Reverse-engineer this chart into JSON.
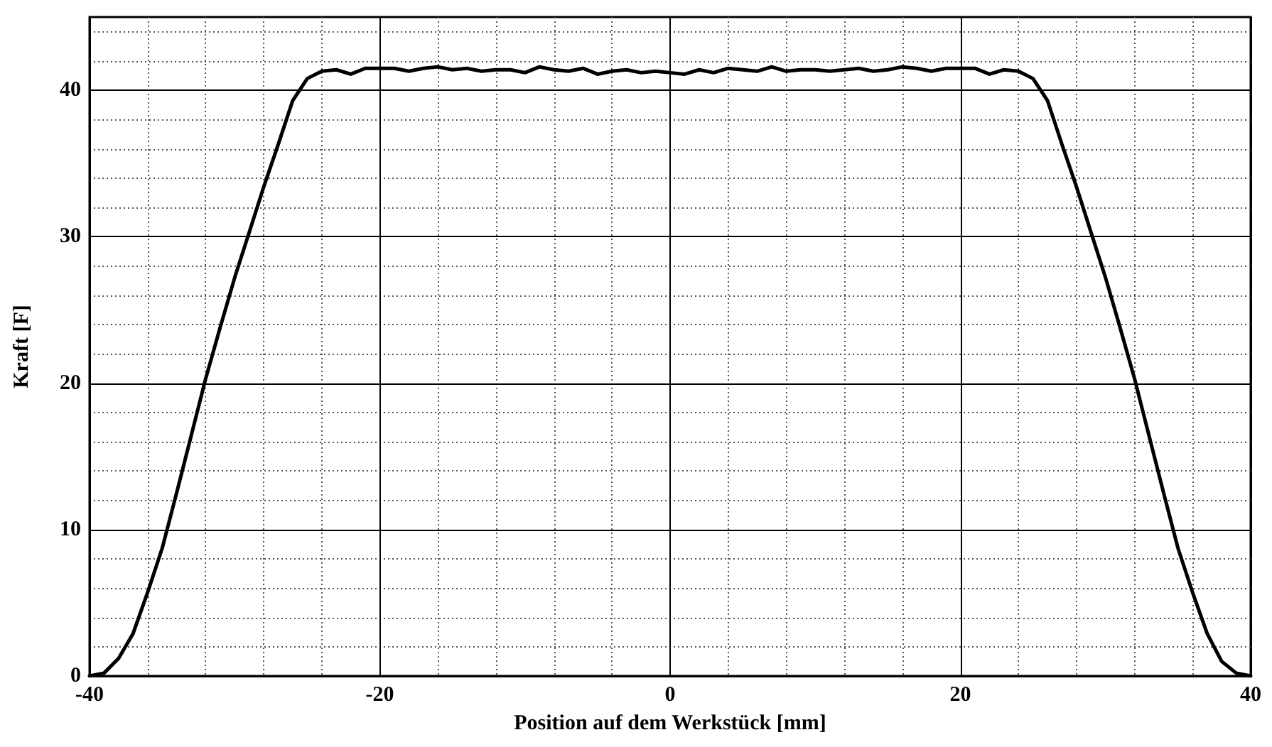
{
  "chart_data": {
    "type": "line",
    "xlabel": "Position auf dem Werkstück [mm]",
    "ylabel": "Kraft [F]",
    "x": [
      -40,
      -39,
      -38,
      -37,
      -36,
      -35,
      -34,
      -33,
      -32,
      -31,
      -30,
      -29,
      -28,
      -27,
      -26,
      -25,
      -24,
      -23,
      -22,
      -21,
      -20,
      -19,
      -18,
      -17,
      -16,
      -15,
      -14,
      -13,
      -12,
      -11,
      -10,
      -9,
      -8,
      -7,
      -6,
      -5,
      -4,
      -3,
      -2,
      -1,
      0,
      1,
      2,
      3,
      4,
      5,
      6,
      7,
      8,
      9,
      10,
      11,
      12,
      13,
      14,
      15,
      16,
      17,
      18,
      19,
      20,
      21,
      22,
      23,
      24,
      25,
      26,
      27,
      28,
      29,
      30,
      31,
      32,
      33,
      34,
      35,
      36,
      37,
      38,
      39,
      40
    ],
    "series": [
      {
        "color": "#000000",
        "values": [
          0,
          0.2,
          1.2,
          2.9,
          5.7,
          8.7,
          12.5,
          16.4,
          20.3,
          23.8,
          27.2,
          30.3,
          33.4,
          36.3,
          39.3,
          40.8,
          41.3,
          41.4,
          41.1,
          41.5,
          41.5,
          41.5,
          41.3,
          41.5,
          41.6,
          41.4,
          41.5,
          41.3,
          41.4,
          41.4,
          41.2,
          41.6,
          41.4,
          41.3,
          41.5,
          41.1,
          41.3,
          41.4,
          41.2,
          41.3,
          41.2,
          41.1,
          41.4,
          41.2,
          41.5,
          41.4,
          41.3,
          41.6,
          41.3,
          41.4,
          41.4,
          41.3,
          41.4,
          41.5,
          41.3,
          41.4,
          41.6,
          41.5,
          41.3,
          41.5,
          41.5,
          41.5,
          41.1,
          41.4,
          41.3,
          40.8,
          39.3,
          36.3,
          33.4,
          30.3,
          27.2,
          23.8,
          20.3,
          16.4,
          12.5,
          8.7,
          5.7,
          2.9,
          1.0,
          0.2,
          0
        ]
      }
    ],
    "xlim": [
      -40,
      40
    ],
    "xticks": [
      -40,
      {
        "value": -36,
        "label": null
      },
      {
        "value": -32,
        "label": null
      },
      {
        "value": -28,
        "label": null
      },
      {
        "value": -24,
        "label": null
      },
      -20,
      {
        "value": -16,
        "label": null
      },
      {
        "value": -12,
        "label": null
      },
      {
        "value": -8,
        "label": null
      },
      {
        "value": -4,
        "label": null
      },
      0,
      {
        "value": 4,
        "label": null
      },
      {
        "value": 8,
        "label": null
      },
      {
        "value": 12,
        "label": null
      },
      {
        "value": 16,
        "label": null
      },
      20,
      {
        "value": 24,
        "label": null
      },
      {
        "value": 28,
        "label": null
      },
      {
        "value": 32,
        "label": null
      },
      {
        "value": 36,
        "label": null
      },
      40
    ],
    "ylim": [
      0,
      45
    ],
    "yticks": [
      0,
      {
        "value": 2,
        "label": null
      },
      {
        "value": 4,
        "label": null
      },
      {
        "value": 6,
        "label": null
      },
      {
        "value": 8,
        "label": null
      },
      10,
      {
        "value": 12,
        "label": null
      },
      {
        "value": 14,
        "label": null
      },
      {
        "value": 16,
        "label": null
      },
      {
        "value": 18,
        "label": null
      },
      20,
      {
        "value": 22,
        "label": null
      },
      {
        "value": 24,
        "label": null
      },
      {
        "value": 26,
        "label": null
      },
      {
        "value": 28,
        "label": null
      },
      30,
      {
        "value": 32,
        "label": null
      },
      {
        "value": 34,
        "label": null
      },
      {
        "value": 36,
        "label": null
      },
      {
        "value": 38,
        "label": null
      },
      40,
      {
        "value": 42,
        "label": null
      },
      {
        "value": 44,
        "label": null
      }
    ],
    "grid": true,
    "marker": "none",
    "line_style": "solid"
  }
}
